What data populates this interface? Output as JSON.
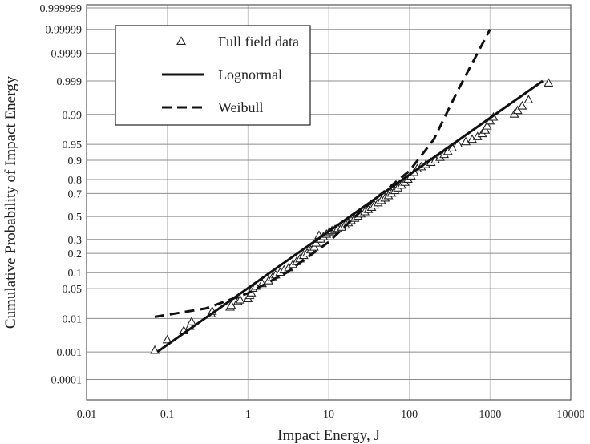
{
  "chart_data": {
    "type": "scatter",
    "xlabel": "Impact Energy, J",
    "ylabel": "Cumulative Probability of Impact Energy",
    "x_scale": "log",
    "y_scale": "probability",
    "xlim": [
      0.01,
      10000
    ],
    "x_ticks": [
      "0.01",
      "0.1",
      "1",
      "10",
      "100",
      "1000",
      "10000"
    ],
    "y_ticks": [
      {
        "p": 0.0001,
        "label": "0.0001"
      },
      {
        "p": 0.001,
        "label": "0.001"
      },
      {
        "p": 0.01,
        "label": "0.01"
      },
      {
        "p": 0.05,
        "label": "0.05"
      },
      {
        "p": 0.1,
        "label": "0.1"
      },
      {
        "p": 0.2,
        "label": "0.2"
      },
      {
        "p": 0.3,
        "label": "0.3"
      },
      {
        "p": 0.5,
        "label": "0.5"
      },
      {
        "p": 0.7,
        "label": "0.7"
      },
      {
        "p": 0.8,
        "label": "0.8"
      },
      {
        "p": 0.9,
        "label": "0.9"
      },
      {
        "p": 0.95,
        "label": "0.95"
      },
      {
        "p": 0.99,
        "label": "0.99"
      },
      {
        "p": 0.999,
        "label": "0.999"
      },
      {
        "p": 0.9999,
        "label": "0.9999"
      },
      {
        "p": 0.99999,
        "label": "0.99999"
      },
      {
        "p": 0.999999,
        "label": "0.999999"
      }
    ],
    "legend_position": "top-left",
    "grid": true,
    "series": [
      {
        "name": "Full field data",
        "kind": "markers",
        "marker": "triangle",
        "points": [
          [
            0.07,
            0.0011
          ],
          [
            0.1,
            0.0024
          ],
          [
            0.16,
            0.0045
          ],
          [
            0.19,
            0.006
          ],
          [
            0.2,
            0.008
          ],
          [
            0.35,
            0.013
          ],
          [
            0.36,
            0.015
          ],
          [
            0.6,
            0.019
          ],
          [
            0.62,
            0.021
          ],
          [
            0.75,
            0.026
          ],
          [
            0.8,
            0.028
          ],
          [
            1.0,
            0.03
          ],
          [
            1.05,
            0.035
          ],
          [
            1.1,
            0.04
          ],
          [
            1.15,
            0.05
          ],
          [
            1.25,
            0.055
          ],
          [
            1.5,
            0.062
          ],
          [
            1.8,
            0.07
          ],
          [
            2.0,
            0.08
          ],
          [
            2.2,
            0.09
          ],
          [
            2.5,
            0.1
          ],
          [
            2.8,
            0.11
          ],
          [
            3.2,
            0.12
          ],
          [
            3.6,
            0.135
          ],
          [
            4.0,
            0.15
          ],
          [
            4.4,
            0.165
          ],
          [
            4.9,
            0.185
          ],
          [
            5.4,
            0.2
          ],
          [
            6.0,
            0.22
          ],
          [
            6.6,
            0.24
          ],
          [
            7.0,
            0.27
          ],
          [
            7.3,
            0.3
          ],
          [
            7.6,
            0.33
          ],
          [
            8.0,
            0.3
          ],
          [
            8.6,
            0.32
          ],
          [
            9.4,
            0.34
          ],
          [
            10.2,
            0.36
          ],
          [
            11.0,
            0.37
          ],
          [
            12.0,
            0.38
          ],
          [
            13.0,
            0.39
          ],
          [
            14.5,
            0.4
          ],
          [
            16.0,
            0.42
          ],
          [
            17.5,
            0.44
          ],
          [
            19.0,
            0.46
          ],
          [
            21.0,
            0.48
          ],
          [
            23.0,
            0.5
          ],
          [
            25.0,
            0.52
          ],
          [
            28.0,
            0.54
          ],
          [
            31.0,
            0.56
          ],
          [
            34.0,
            0.58
          ],
          [
            37.0,
            0.6
          ],
          [
            41.0,
            0.62
          ],
          [
            45.0,
            0.64
          ],
          [
            50.0,
            0.66
          ],
          [
            55.0,
            0.68
          ],
          [
            60.0,
            0.7
          ],
          [
            66.0,
            0.72
          ],
          [
            72.0,
            0.74
          ],
          [
            80.0,
            0.76
          ],
          [
            88.0,
            0.78
          ],
          [
            96.0,
            0.8
          ],
          [
            105.0,
            0.82
          ],
          [
            115.0,
            0.84
          ],
          [
            125.0,
            0.86
          ],
          [
            140.0,
            0.87
          ],
          [
            160.0,
            0.88
          ],
          [
            185.0,
            0.89
          ],
          [
            210.0,
            0.9
          ],
          [
            240.0,
            0.91
          ],
          [
            270.0,
            0.92
          ],
          [
            300.0,
            0.93
          ],
          [
            340.0,
            0.94
          ],
          [
            400.0,
            0.95
          ],
          [
            500.0,
            0.955
          ],
          [
            600.0,
            0.96
          ],
          [
            700.0,
            0.965
          ],
          [
            800.0,
            0.97
          ],
          [
            870.0,
            0.975
          ],
          [
            920.0,
            0.98
          ],
          [
            1000.0,
            0.985
          ],
          [
            1100.0,
            0.988
          ],
          [
            2000.0,
            0.99
          ],
          [
            2200.0,
            0.992
          ],
          [
            2500.0,
            0.994
          ],
          [
            3000.0,
            0.996
          ],
          [
            5300.0,
            0.9988
          ]
        ]
      },
      {
        "name": "Lognormal",
        "kind": "line",
        "dash": "solid",
        "points": [
          [
            0.075,
            0.001
          ],
          [
            4500,
            0.999
          ]
        ]
      },
      {
        "name": "Weibull",
        "kind": "line",
        "dash": "dashed",
        "points": [
          [
            0.07,
            0.011
          ],
          [
            0.3,
            0.018
          ],
          [
            1.0,
            0.04
          ],
          [
            3.0,
            0.1
          ],
          [
            10.0,
            0.28
          ],
          [
            30.0,
            0.6
          ],
          [
            100.0,
            0.85
          ],
          [
            200.0,
            0.96
          ],
          [
            400.0,
            0.998
          ],
          [
            1000.0,
            0.99999
          ]
        ]
      }
    ]
  }
}
